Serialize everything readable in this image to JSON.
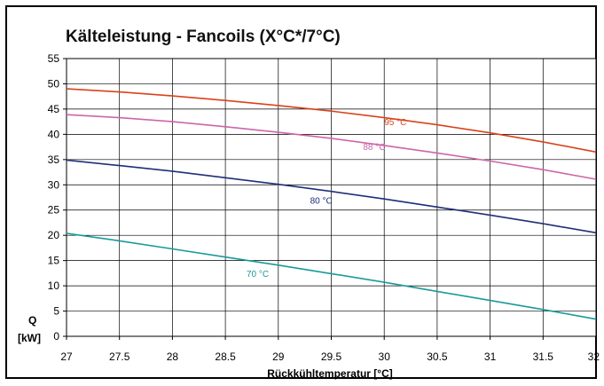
{
  "chart_data": {
    "type": "line",
    "title": "Kälteleistung - Fancoils (X°C*/7°C)",
    "xlabel": "Rückkühltemperatur [°C]",
    "ylabel_top": "Q",
    "ylabel_bottom": "[kW]",
    "xlim": [
      27,
      32
    ],
    "ylim": [
      0,
      55
    ],
    "x_ticks": [
      "27",
      "27.5",
      "28",
      "28.5",
      "29",
      "29.5",
      "30",
      "30.5",
      "31",
      "31.5",
      "32"
    ],
    "y_ticks": [
      "0",
      "5",
      "10",
      "15",
      "20",
      "25",
      "30",
      "35",
      "40",
      "45",
      "50",
      "55"
    ],
    "grid": true,
    "series": [
      {
        "name": "95 °C",
        "color": "#d9421c",
        "x": [
          27,
          27.5,
          28,
          28.5,
          29,
          29.5,
          30,
          30.5,
          31,
          31.5,
          32
        ],
        "y": [
          49.0,
          48.4,
          47.6,
          46.7,
          45.7,
          44.6,
          43.3,
          41.9,
          40.3,
          38.5,
          36.5
        ],
        "label_at": [
          30.0,
          41.8
        ]
      },
      {
        "name": "88 °C",
        "color": "#cc66aa",
        "x": [
          27,
          27.5,
          28,
          28.5,
          29,
          29.5,
          30,
          30.5,
          31,
          31.5,
          32
        ],
        "y": [
          43.9,
          43.3,
          42.5,
          41.5,
          40.4,
          39.2,
          37.8,
          36.3,
          34.7,
          33.0,
          31.1
        ],
        "label_at": [
          29.8,
          36.9
        ]
      },
      {
        "name": "80 °C",
        "color": "#1f2f7a",
        "x": [
          27,
          27.5,
          28,
          28.5,
          29,
          29.5,
          30,
          30.5,
          31,
          31.5,
          32
        ],
        "y": [
          34.9,
          33.8,
          32.7,
          31.4,
          30.1,
          28.7,
          27.2,
          25.6,
          24.0,
          22.3,
          20.5
        ],
        "label_at": [
          29.3,
          26.3
        ]
      },
      {
        "name": "70 °C",
        "color": "#1a9a9a",
        "x": [
          27,
          27.5,
          28,
          28.5,
          29,
          29.5,
          30,
          30.5,
          31,
          31.5,
          32
        ],
        "y": [
          20.4,
          18.9,
          17.3,
          15.7,
          14.1,
          12.4,
          10.7,
          8.9,
          7.1,
          5.3,
          3.4
        ],
        "label_at": [
          28.7,
          11.8
        ]
      }
    ]
  }
}
